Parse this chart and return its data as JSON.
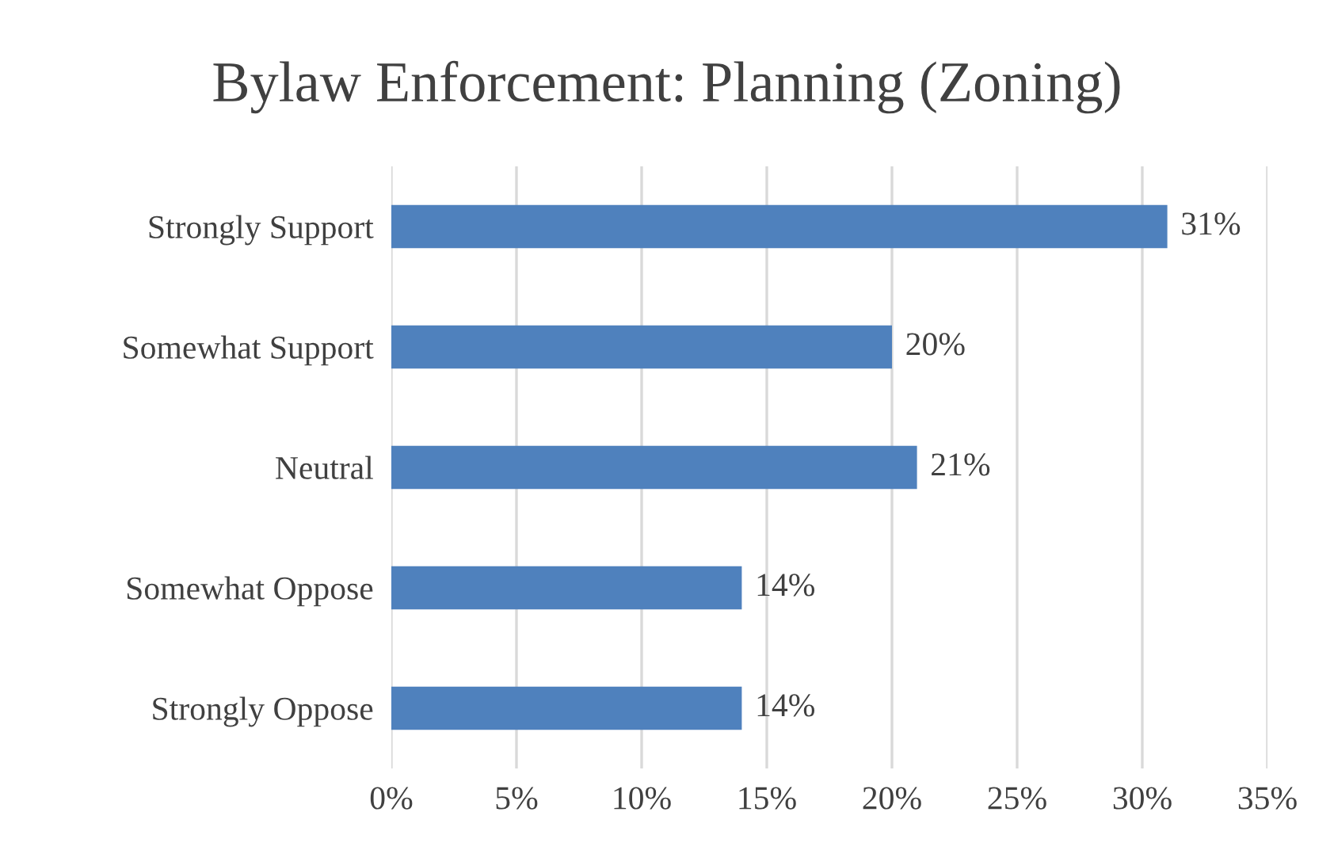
{
  "chart_data": {
    "type": "bar",
    "orientation": "horizontal",
    "title": "Bylaw Enforcement: Planning (Zoning)",
    "categories": [
      "Strongly Support",
      "Somewhat Support",
      "Neutral",
      "Somewhat Oppose",
      "Strongly Oppose"
    ],
    "values": [
      31,
      20,
      21,
      14,
      14
    ],
    "value_labels": [
      "31%",
      "20%",
      "21%",
      "14%",
      "14%"
    ],
    "color": "#4f81bd",
    "xlim": [
      0,
      35
    ],
    "xticks": [
      {
        "value": 0,
        "label": "0%"
      },
      {
        "value": 5,
        "label": "5%"
      },
      {
        "value": 10,
        "label": "10%"
      },
      {
        "value": 15,
        "label": "15%"
      },
      {
        "value": 20,
        "label": "20%"
      },
      {
        "value": 25,
        "label": "25%"
      },
      {
        "value": 30,
        "label": "30%"
      },
      {
        "value": 35,
        "label": "35%"
      }
    ],
    "grid": "x"
  }
}
